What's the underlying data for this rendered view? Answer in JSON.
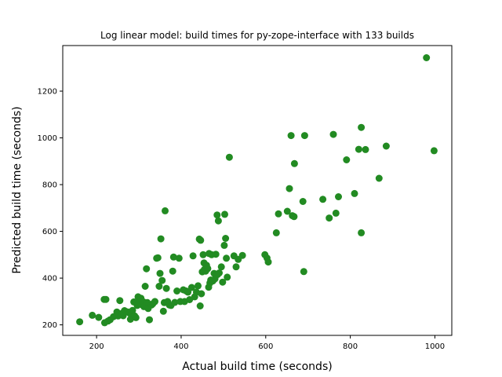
{
  "chart_data": {
    "type": "scatter",
    "title": "Log linear model: build times for py-zope-interface with 133 builds",
    "xlabel": "Actual build time (seconds)",
    "ylabel": "Predicted build time (seconds)",
    "xlim": [
      120,
      1040
    ],
    "ylim": [
      155,
      1395
    ],
    "xticks": [
      200,
      400,
      600,
      800,
      1000
    ],
    "yticks": [
      200,
      400,
      600,
      800,
      1000,
      1200
    ],
    "grid": false,
    "marker_color": "#228b22",
    "points": [
      [
        160,
        213
      ],
      [
        190,
        241
      ],
      [
        205,
        232
      ],
      [
        218,
        309
      ],
      [
        222,
        309
      ],
      [
        219,
        209
      ],
      [
        227,
        216
      ],
      [
        232,
        222
      ],
      [
        240,
        235
      ],
      [
        248,
        255
      ],
      [
        251,
        238
      ],
      [
        255,
        304
      ],
      [
        260,
        249
      ],
      [
        263,
        239
      ],
      [
        266,
        261
      ],
      [
        270,
        256
      ],
      [
        274,
        255
      ],
      [
        278,
        250
      ],
      [
        280,
        224
      ],
      [
        285,
        262
      ],
      [
        288,
        298
      ],
      [
        290,
        238
      ],
      [
        293,
        231
      ],
      [
        296,
        283
      ],
      [
        298,
        320
      ],
      [
        300,
        295
      ],
      [
        303,
        310
      ],
      [
        305,
        314
      ],
      [
        307,
        286
      ],
      [
        310,
        299
      ],
      [
        312,
        278
      ],
      [
        315,
        365
      ],
      [
        318,
        440
      ],
      [
        320,
        295
      ],
      [
        322,
        270
      ],
      [
        325,
        222
      ],
      [
        330,
        285
      ],
      [
        333,
        290
      ],
      [
        338,
        300
      ],
      [
        342,
        485
      ],
      [
        345,
        487
      ],
      [
        348,
        365
      ],
      [
        350,
        420
      ],
      [
        352,
        568
      ],
      [
        355,
        390
      ],
      [
        358,
        258
      ],
      [
        360,
        295
      ],
      [
        362,
        688
      ],
      [
        365,
        356
      ],
      [
        368,
        300
      ],
      [
        372,
        285
      ],
      [
        376,
        283
      ],
      [
        380,
        430
      ],
      [
        382,
        490
      ],
      [
        385,
        296
      ],
      [
        390,
        345
      ],
      [
        395,
        485
      ],
      [
        398,
        300
      ],
      [
        405,
        350
      ],
      [
        408,
        300
      ],
      [
        412,
        345
      ],
      [
        416,
        340
      ],
      [
        420,
        308
      ],
      [
        425,
        360
      ],
      [
        428,
        495
      ],
      [
        432,
        320
      ],
      [
        436,
        340
      ],
      [
        440,
        367
      ],
      [
        443,
        567
      ],
      [
        445,
        281
      ],
      [
        446,
        562
      ],
      [
        448,
        333
      ],
      [
        450,
        427
      ],
      [
        452,
        500
      ],
      [
        454,
        465
      ],
      [
        455,
        437
      ],
      [
        458,
        430
      ],
      [
        460,
        455
      ],
      [
        463,
        441
      ],
      [
        465,
        361
      ],
      [
        466,
        505
      ],
      [
        468,
        379
      ],
      [
        470,
        392
      ],
      [
        472,
        500
      ],
      [
        475,
        388
      ],
      [
        478,
        420
      ],
      [
        480,
        397
      ],
      [
        482,
        502
      ],
      [
        485,
        670
      ],
      [
        486,
        415
      ],
      [
        488,
        645
      ],
      [
        490,
        422
      ],
      [
        495,
        448
      ],
      [
        498,
        383
      ],
      [
        502,
        540
      ],
      [
        503,
        673
      ],
      [
        505,
        570
      ],
      [
        507,
        485
      ],
      [
        509,
        404
      ],
      [
        514,
        917
      ],
      [
        525,
        495
      ],
      [
        530,
        448
      ],
      [
        535,
        480
      ],
      [
        545,
        497
      ],
      [
        598,
        500
      ],
      [
        603,
        486
      ],
      [
        606,
        469
      ],
      [
        625,
        594
      ],
      [
        630,
        675
      ],
      [
        651,
        686
      ],
      [
        656,
        783
      ],
      [
        660,
        1010
      ],
      [
        663,
        667
      ],
      [
        668,
        890
      ],
      [
        667,
        663
      ],
      [
        688,
        728
      ],
      [
        690,
        428
      ],
      [
        692,
        1010
      ],
      [
        735,
        737
      ],
      [
        750,
        657
      ],
      [
        760,
        1015
      ],
      [
        766,
        678
      ],
      [
        772,
        748
      ],
      [
        791,
        906
      ],
      [
        810,
        762
      ],
      [
        820,
        951
      ],
      [
        826,
        594
      ],
      [
        826,
        1045
      ],
      [
        836,
        950
      ],
      [
        868,
        827
      ],
      [
        885,
        965
      ],
      [
        980,
        1343
      ],
      [
        998,
        945
      ]
    ]
  }
}
